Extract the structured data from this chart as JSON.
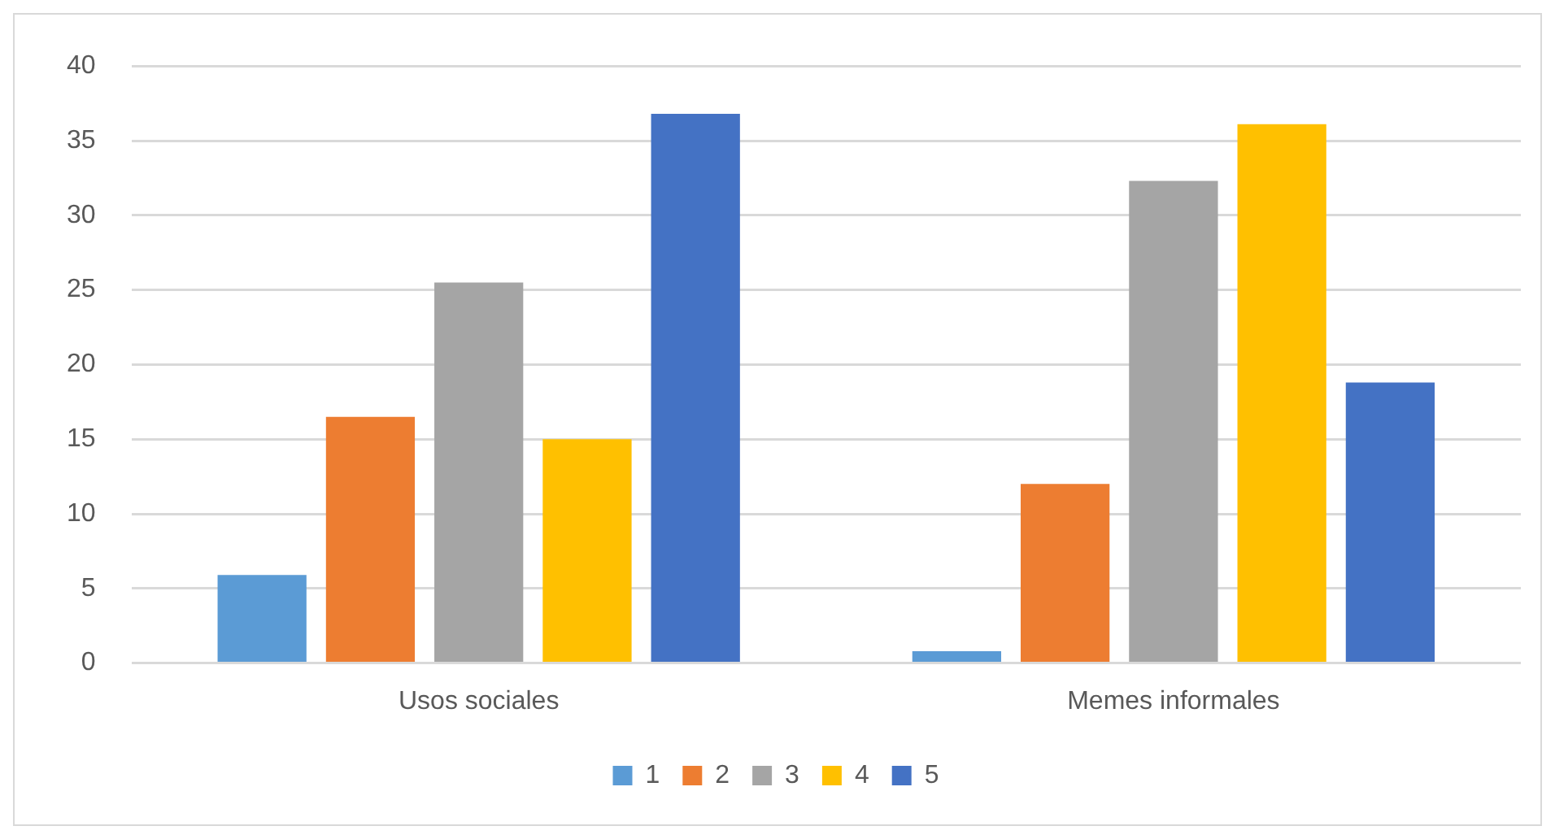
{
  "chart_data": {
    "type": "bar",
    "categories": [
      "Usos sociales",
      "Memes informales"
    ],
    "series": [
      {
        "name": "1",
        "color": "#5b9bd5",
        "values": [
          5.9,
          0.8
        ]
      },
      {
        "name": "2",
        "color": "#ed7d31",
        "values": [
          16.5,
          12.0
        ]
      },
      {
        "name": "3",
        "color": "#a5a5a5",
        "values": [
          25.5,
          32.3
        ]
      },
      {
        "name": "4",
        "color": "#ffc000",
        "values": [
          15.0,
          36.1
        ]
      },
      {
        "name": "5",
        "color": "#4472c4",
        "values": [
          36.8,
          18.8
        ]
      }
    ],
    "ylim": [
      0,
      40
    ],
    "yticks": [
      0,
      5,
      10,
      15,
      20,
      25,
      30,
      35,
      40
    ],
    "grid": "y",
    "legend": "bottom"
  }
}
